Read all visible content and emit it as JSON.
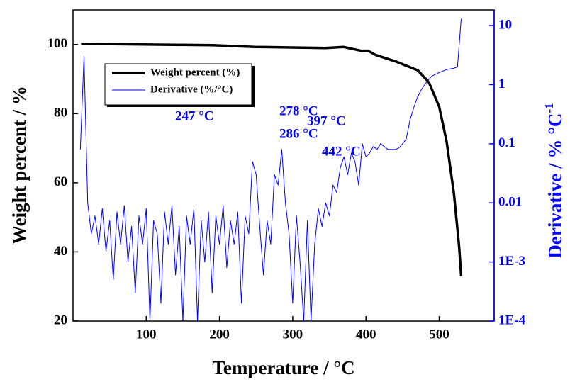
{
  "chart_data": {
    "type": "line",
    "xlabel": "Temperature / °C",
    "ylabel": "Weight percent / %",
    "y2label": "Derivative / % °C",
    "y2label_superscript": "-1",
    "xlim": [
      0,
      575
    ],
    "xticks": [
      100,
      200,
      300,
      400,
      500
    ],
    "ylim": [
      20,
      110
    ],
    "yticks": [
      20,
      40,
      60,
      80,
      100
    ],
    "y2lim": [
      0.0001,
      18.4
    ],
    "y2log": true,
    "y2ticks": [
      {
        "value": 0.0001,
        "label": "1E-4"
      },
      {
        "value": 0.001,
        "label": "1E-3"
      },
      0.01,
      0.1,
      1,
      10
    ],
    "y2color": "#0000ff",
    "series": [
      {
        "name": "Weight percent (%)",
        "color": "#000000",
        "axis": "y",
        "x": [
          11,
          190,
          248,
          345,
          369,
          393,
          403,
          413,
          442,
          471,
          486,
          500,
          510,
          520,
          527,
          530
        ],
        "values": [
          100.2,
          99.8,
          99.3,
          99.0,
          99.3,
          98.2,
          98.2,
          97,
          95,
          92.5,
          89,
          82,
          72,
          57,
          42,
          33
        ]
      },
      {
        "name": "Derivative (%/°C)",
        "color": "#0000ff",
        "axis": "y2",
        "x": [
          10,
          15,
          20,
          25,
          30,
          35,
          40,
          45,
          50,
          55,
          60,
          65,
          70,
          75,
          80,
          85,
          90,
          95,
          100,
          105,
          110,
          115,
          120,
          125,
          130,
          135,
          140,
          145,
          150,
          155,
          160,
          165,
          170,
          175,
          180,
          185,
          190,
          195,
          200,
          205,
          210,
          215,
          220,
          225,
          230,
          235,
          240,
          245,
          250,
          255,
          260,
          265,
          270,
          275,
          280,
          285,
          290,
          295,
          300,
          305,
          310,
          315,
          320,
          325,
          330,
          335,
          340,
          345,
          350,
          355,
          360,
          365,
          370,
          375,
          380,
          385,
          390,
          395,
          400,
          405,
          410,
          415,
          420,
          425,
          430,
          435,
          440,
          445,
          450,
          455,
          460,
          465,
          470,
          475,
          480,
          485,
          490,
          495,
          500,
          505,
          510,
          515,
          520,
          525,
          530
        ],
        "values": [
          0.08,
          3,
          0.01,
          0.003,
          0.006,
          0.002,
          0.008,
          0.0015,
          0.005,
          0.0005,
          0.007,
          0.002,
          0.009,
          0.001,
          0.004,
          0.0003,
          0.006,
          0.002,
          0.008,
          0.0001,
          0.005,
          0.003,
          0.0002,
          0.007,
          0.002,
          0.009,
          0.0006,
          0.004,
          0.0001,
          0.006,
          0.002,
          0.008,
          0.0001,
          0.005,
          0.001,
          0.007,
          0.0003,
          0.006,
          0.002,
          0.009,
          0.0008,
          0.005,
          0.002,
          0.007,
          0.0002,
          0.006,
          0.003,
          0.05,
          0.03,
          0.004,
          0.0006,
          0.005,
          0.002,
          0.03,
          0.02,
          0.08,
          0.01,
          0.003,
          0.0002,
          0.006,
          0.001,
          0.0001,
          0.005,
          0.0001,
          0.002,
          0.008,
          0.004,
          0.01,
          0.006,
          0.02,
          0.015,
          0.04,
          0.06,
          0.03,
          0.07,
          0.05,
          0.02,
          0.1,
          0.06,
          0.07,
          0.09,
          0.08,
          0.1,
          0.09,
          0.08,
          0.08,
          0.08,
          0.085,
          0.1,
          0.12,
          0.25,
          0.4,
          0.6,
          0.8,
          1,
          1.2,
          1.4,
          1.5,
          1.6,
          1.7,
          1.8,
          1.85,
          1.9,
          2,
          13
        ]
      }
    ],
    "annotations": [
      "247 °C",
      "278 °C",
      "286 °C",
      "397 °C",
      "442 °C"
    ]
  }
}
